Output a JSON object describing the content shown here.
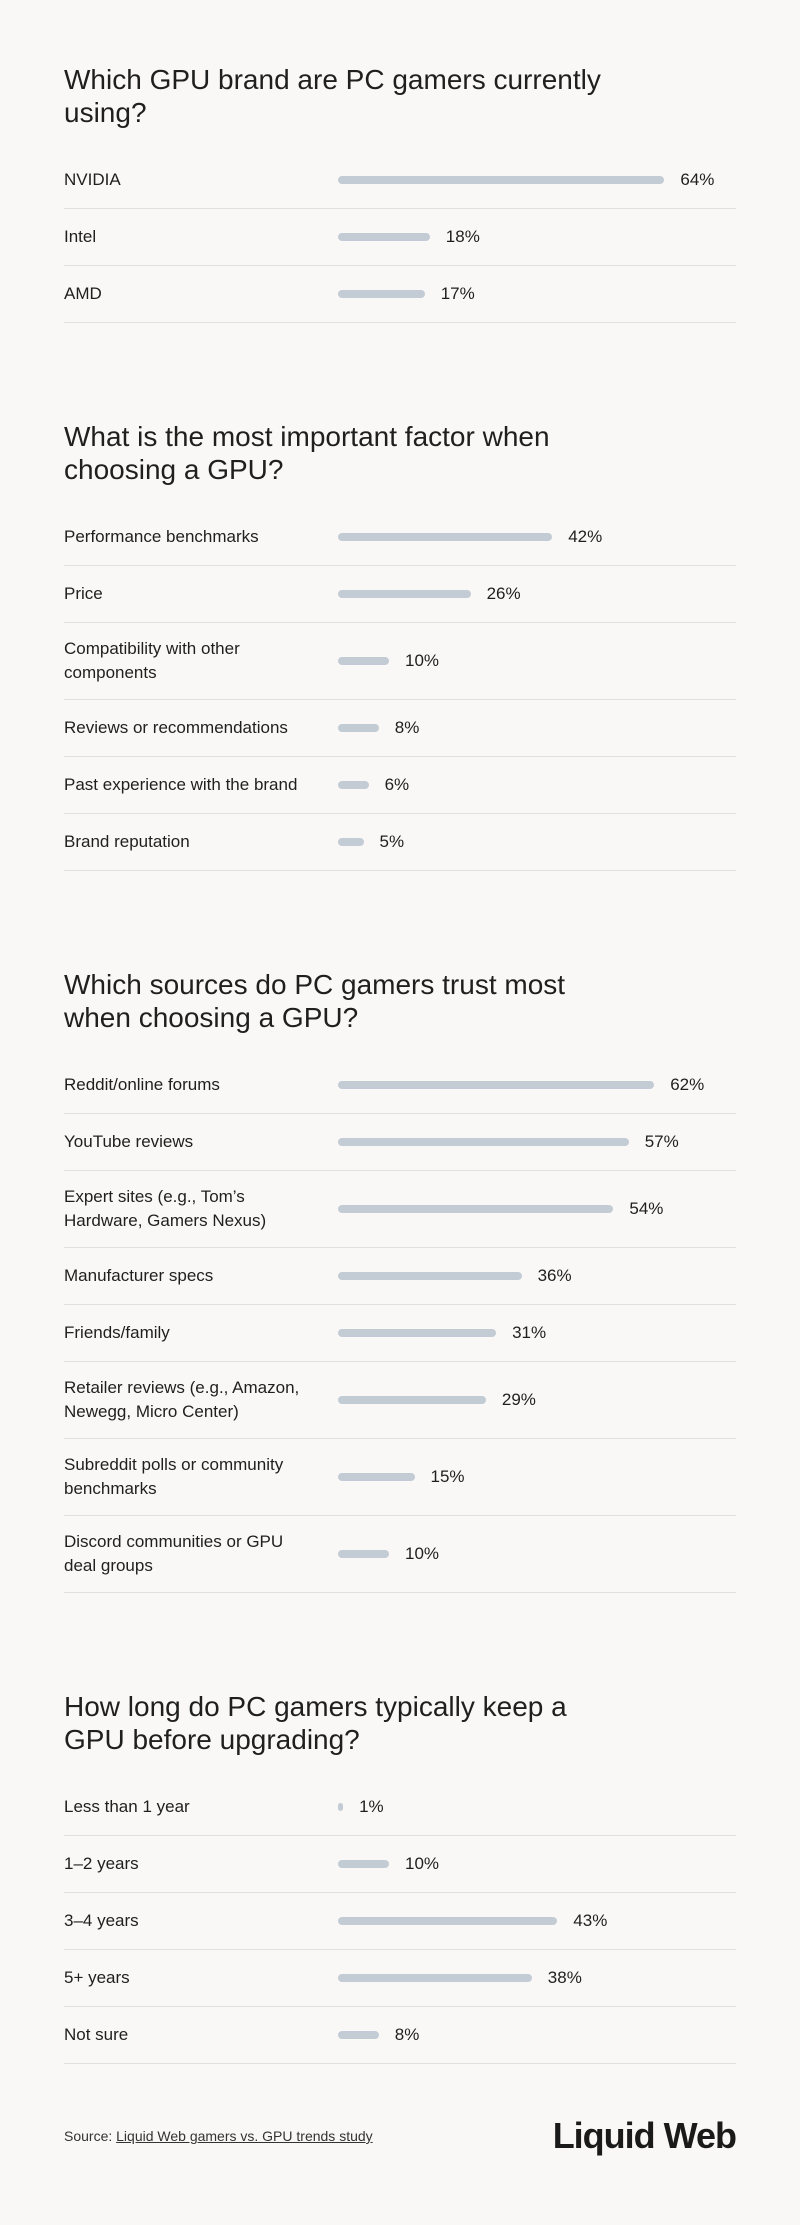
{
  "chart_data": [
    {
      "type": "bar",
      "title": "Which GPU brand are PC gamers currently using?",
      "color": "#c3ccd4",
      "categories": [
        "NVIDIA",
        "Intel",
        "AMD"
      ],
      "values": [
        64,
        18,
        17
      ],
      "value_labels": [
        "64%",
        "18%",
        "17%"
      ]
    },
    {
      "type": "bar",
      "title": "What is the most important factor when choosing a GPU?",
      "color": "#c3ccd4",
      "categories": [
        "Performance benchmarks",
        "Price",
        "Compatibility with other components",
        "Reviews or recommendations",
        "Past experience with the brand",
        "Brand reputation"
      ],
      "values": [
        42,
        26,
        10,
        8,
        6,
        5
      ],
      "value_labels": [
        "42%",
        "26%",
        "10%",
        "8%",
        "6%",
        "5%"
      ]
    },
    {
      "type": "bar",
      "title": "Which sources do PC gamers trust most when choosing a GPU?",
      "color": "#c3ccd4",
      "categories": [
        "Reddit/online forums",
        "YouTube reviews",
        "Expert sites (e.g., Tom’s Hardware, Gamers Nexus)",
        "Manufacturer specs",
        "Friends/family",
        "Retailer reviews (e.g., Amazon, Newegg, Micro Center)",
        "Subreddit polls or community benchmarks",
        "Discord communities or GPU deal groups"
      ],
      "values": [
        62,
        57,
        54,
        36,
        31,
        29,
        15,
        10
      ],
      "value_labels": [
        "62%",
        "57%",
        "54%",
        "36%",
        "31%",
        "29%",
        "15%",
        "10%"
      ]
    },
    {
      "type": "bar",
      "title": "How long do PC gamers typically keep a GPU before upgrading?",
      "color": "#c3ccd4",
      "categories": [
        "Less than 1 year",
        "1–2 years",
        "3–4 years",
        "5+ years",
        "Not sure"
      ],
      "values": [
        1,
        10,
        43,
        38,
        8
      ],
      "value_labels": [
        "1%",
        "10%",
        "43%",
        "38%",
        "8%"
      ]
    }
  ],
  "footer": {
    "source_prefix": "Source:",
    "source_link": "Liquid Web gamers vs. GPU trends study",
    "logo": "Liquid Web"
  }
}
